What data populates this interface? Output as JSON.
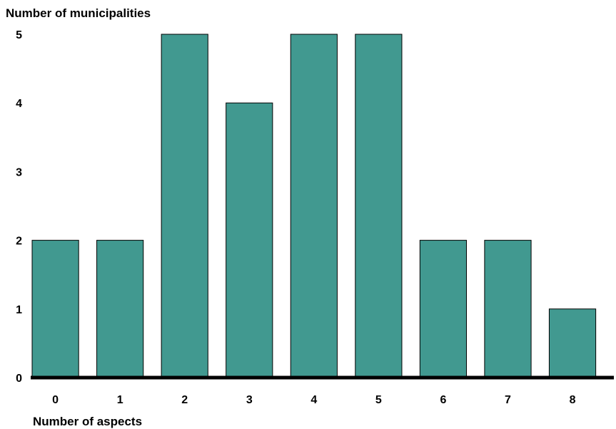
{
  "chart_data": {
    "type": "bar",
    "ylabel": "Number of municipalities",
    "xlabel": "Number of aspects",
    "categories": [
      "0",
      "1",
      "2",
      "3",
      "4",
      "5",
      "6",
      "7",
      "8"
    ],
    "values": [
      2,
      2,
      5,
      4,
      5,
      5,
      2,
      2,
      1
    ],
    "ylim": [
      0,
      5
    ],
    "yticks": [
      "0",
      "1",
      "2",
      "3",
      "4",
      "5"
    ],
    "grid": false,
    "bar_color": "#419990",
    "bar_stroke": "#000000"
  }
}
